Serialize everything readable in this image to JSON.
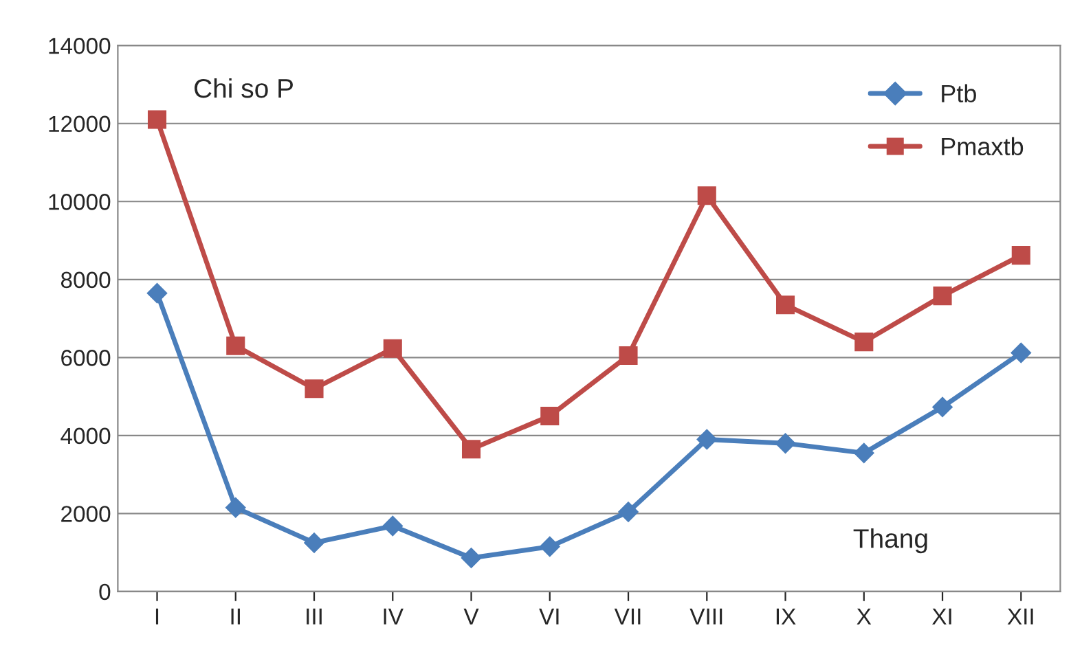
{
  "chart_data": {
    "type": "line",
    "categories": [
      "I",
      "II",
      "III",
      "IV",
      "V",
      "VI",
      "VII",
      "VIII",
      "IX",
      "X",
      "XI",
      "XII"
    ],
    "series": [
      {
        "name": "Ptb",
        "color": "#4a7ebb",
        "marker": "diamond",
        "values": [
          7650,
          2150,
          1250,
          1680,
          860,
          1150,
          2040,
          3900,
          3800,
          3550,
          4730,
          6120
        ]
      },
      {
        "name": "Pmaxtb",
        "color": "#be4b48",
        "marker": "square",
        "values": [
          12100,
          6300,
          5200,
          6230,
          3650,
          4500,
          6050,
          10150,
          7350,
          6400,
          7580,
          8620
        ]
      }
    ],
    "ylim": [
      0,
      14000
    ],
    "yticks": [
      0,
      2000,
      4000,
      6000,
      8000,
      10000,
      12000,
      14000
    ],
    "grid": "y",
    "legend": "top right",
    "annotations": [
      {
        "text": "Chi so P"
      },
      {
        "text": "Thang"
      }
    ]
  }
}
